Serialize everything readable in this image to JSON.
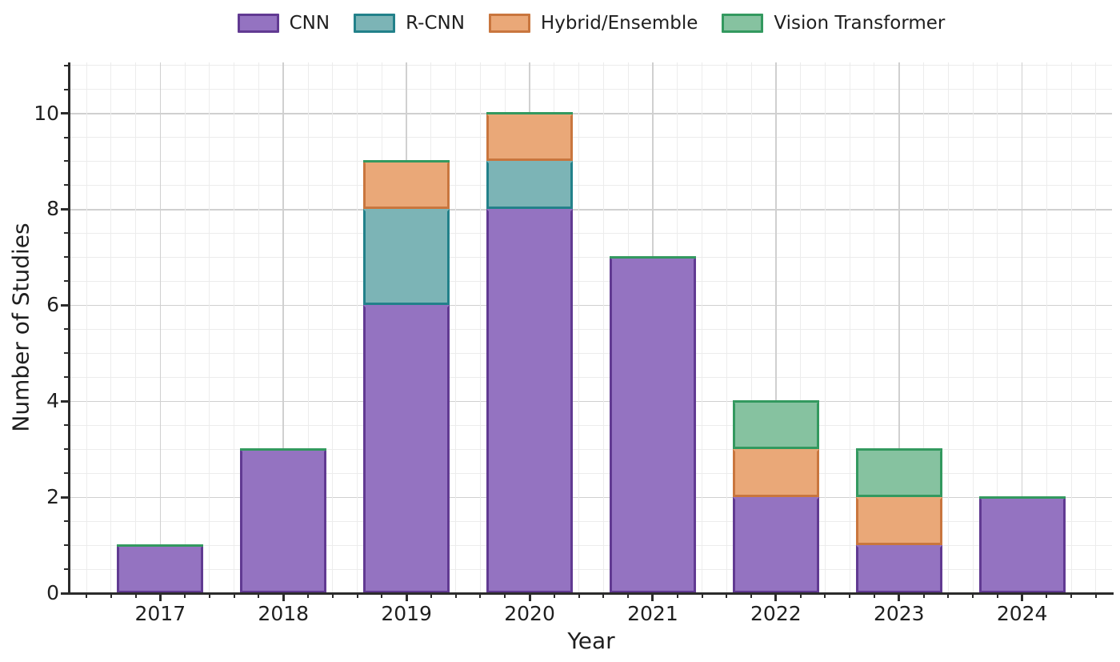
{
  "figure": {
    "background": "#ffffff",
    "text_color": "#1f1f1f",
    "axis_color": "#2b2b2b",
    "grid_major_color": "#d0d0d0",
    "grid_minor_color": "#ececec"
  },
  "chart_data": {
    "type": "bar",
    "stacked": true,
    "title": "",
    "xlabel": "Year",
    "ylabel": "Number of Studies",
    "categories": [
      "2017",
      "2018",
      "2019",
      "2020",
      "2021",
      "2022",
      "2023",
      "2024"
    ],
    "series": [
      {
        "name": "CNN",
        "fill": "#9473c1",
        "edge": "#613a92",
        "values": [
          1,
          3,
          6,
          8,
          7,
          2,
          1,
          2
        ]
      },
      {
        "name": "R-CNN",
        "fill": "#7cb4b6",
        "edge": "#22818a",
        "values": [
          0,
          0,
          2,
          1,
          0,
          0,
          0,
          0
        ]
      },
      {
        "name": "Hybrid/Ensemble",
        "fill": "#eaa878",
        "edge": "#c9763e",
        "values": [
          0,
          0,
          1,
          1,
          0,
          1,
          1,
          0
        ]
      },
      {
        "name": "Vision Transformer",
        "fill": "#86c2a0",
        "edge": "#33995f",
        "values": [
          0,
          0,
          0,
          0,
          0,
          1,
          1,
          0
        ]
      }
    ],
    "totals": [
      1,
      3,
      9,
      10,
      7,
      4,
      3,
      2
    ],
    "ylim": [
      0,
      11.06
    ],
    "yticks_major": [
      0,
      2,
      4,
      6,
      8,
      10
    ],
    "ytick_minor_step": 0.5,
    "xtick_minor_step": 0.2,
    "bar_width_fraction": 0.7,
    "x_padding_years": 0.73,
    "grid": true,
    "legend_position": "top-center",
    "zero_height_segment_edge_visible": true
  }
}
